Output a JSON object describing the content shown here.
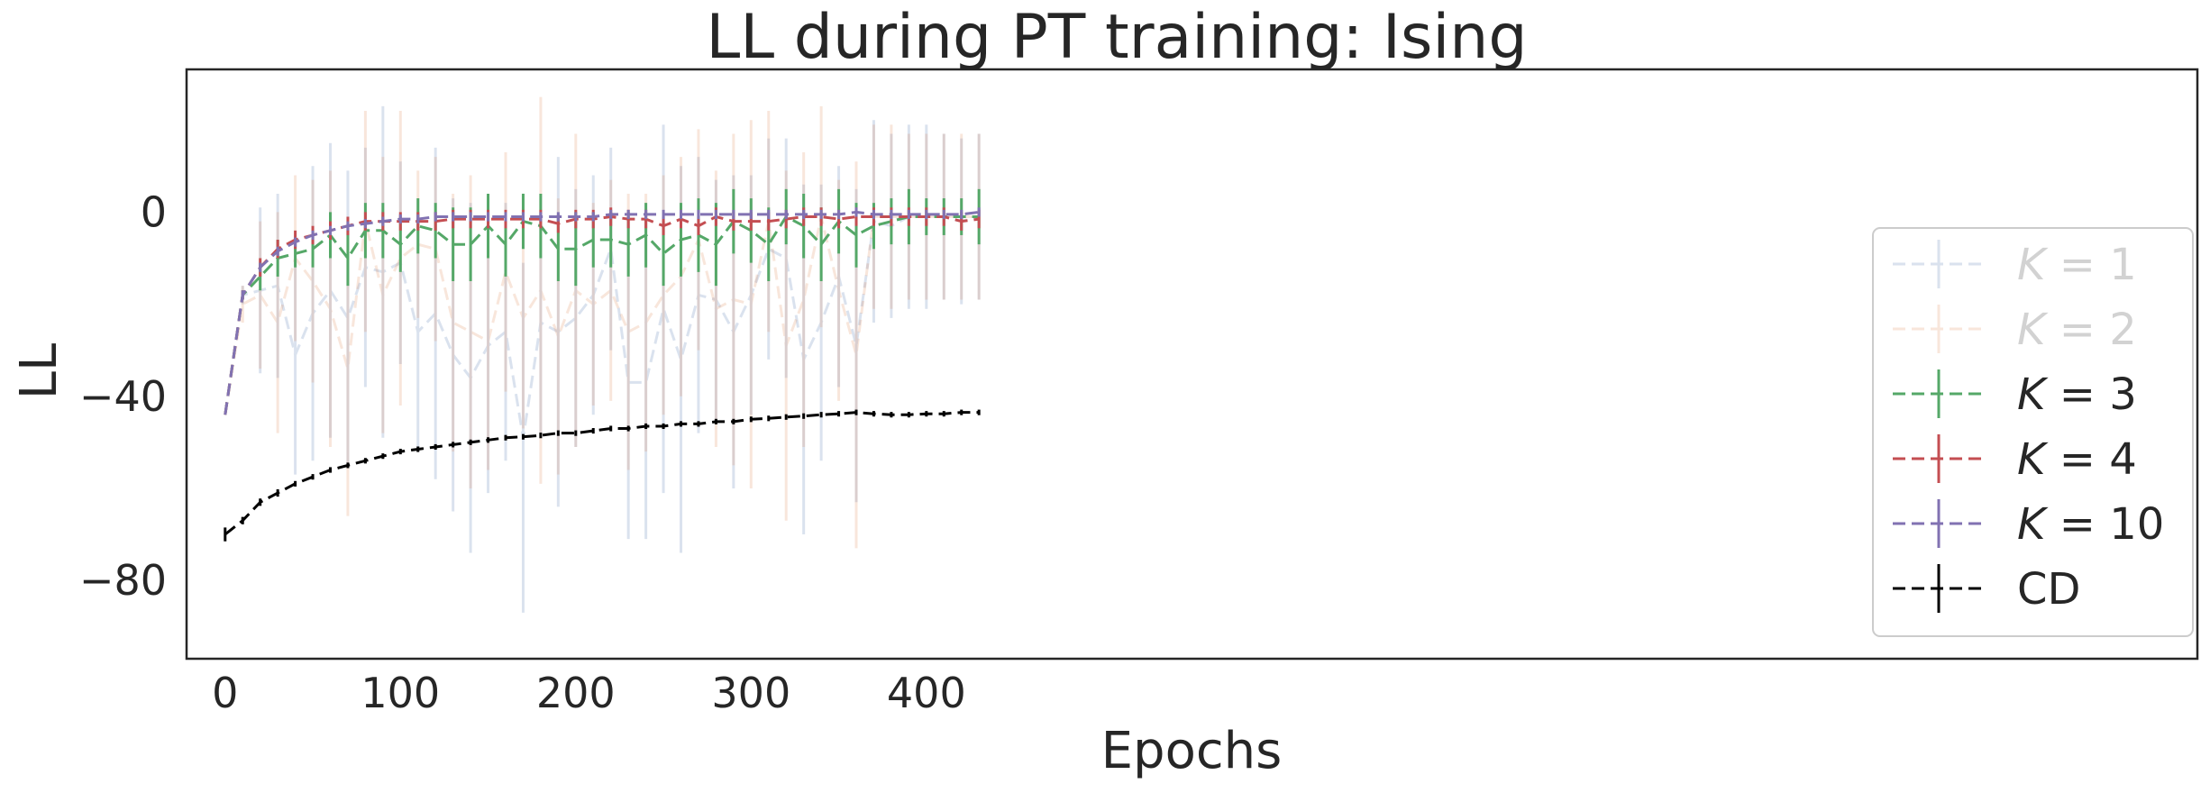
{
  "chart_data": {
    "type": "line",
    "title": "LL during PT training: Ising",
    "xlabel": "Epochs",
    "ylabel": "LL",
    "xlim": [
      -22,
      1125
    ],
    "ylim": [
      -97,
      31
    ],
    "xticks": [
      0,
      100,
      200,
      300,
      400
    ],
    "yticks": [
      0,
      -40,
      -80
    ],
    "ytick_labels": [
      "0",
      "−40",
      "−80"
    ],
    "grid": false,
    "legend_position": "lower-right",
    "x": [
      0,
      10,
      20,
      30,
      40,
      50,
      60,
      70,
      80,
      90,
      100,
      110,
      120,
      130,
      140,
      150,
      160,
      170,
      180,
      190,
      200,
      210,
      220,
      230,
      240,
      250,
      260,
      270,
      280,
      290,
      300,
      310,
      320,
      330,
      340,
      350,
      360,
      370,
      380,
      390,
      400,
      410,
      420,
      430
    ],
    "series": [
      {
        "name": "K = 1",
        "legend_math": "K",
        "legend_rest": " = 1",
        "color": "#4c72b0",
        "opacity": 0.2,
        "values": [
          -44,
          -18,
          -17,
          -16,
          -31,
          -22,
          -17,
          -23,
          -12,
          -13,
          -11,
          -26,
          -22,
          -31,
          -36,
          -29,
          -26,
          -49,
          -24,
          -26,
          -23,
          -18,
          -8,
          -37,
          -37,
          -21,
          -32,
          -18,
          -19,
          -26,
          -18,
          -8,
          -10,
          -32,
          -24,
          -14,
          -29,
          -2,
          -3,
          -1,
          -1,
          -1,
          -2,
          -1
        ],
        "errors": [
          0,
          2,
          18,
          20,
          26,
          32,
          32,
          32,
          26,
          36,
          22,
          26,
          36,
          34,
          38,
          32,
          28,
          38,
          24,
          38,
          28,
          26,
          22,
          34,
          34,
          40,
          42,
          30,
          26,
          34,
          26,
          24,
          26,
          38,
          30,
          24,
          34,
          22,
          20,
          20,
          20,
          18,
          18,
          18
        ]
      },
      {
        "name": "K = 2",
        "legend_math": "K",
        "legend_rest": " = 2",
        "color": "#dd8452",
        "opacity": 0.2,
        "values": [
          -44,
          -20,
          -18,
          -24,
          -10,
          -15,
          -21,
          -34,
          -2,
          -18,
          -10,
          -7,
          -8,
          -24,
          -26,
          -28,
          -13,
          -23,
          -17,
          -27,
          -17,
          -20,
          -17,
          -26,
          -24,
          -18,
          -14,
          -6,
          -21,
          -19,
          -20,
          -2,
          -29,
          -19,
          -1,
          -17,
          -31,
          -1,
          -1,
          -1,
          -1,
          -1,
          -1,
          -1
        ],
        "errors": [
          0,
          4,
          16,
          24,
          18,
          22,
          30,
          32,
          24,
          30,
          32,
          16,
          20,
          28,
          34,
          28,
          26,
          24,
          42,
          30,
          34,
          22,
          24,
          30,
          28,
          26,
          26,
          24,
          30,
          36,
          40,
          24,
          38,
          32,
          24,
          24,
          42,
          20,
          20,
          18,
          18,
          18,
          18,
          18
        ]
      },
      {
        "name": "K = 3",
        "legend_math": "K",
        "legend_rest": " = 3",
        "color": "#55a868",
        "opacity": 1,
        "values": [
          -44,
          -18,
          -14,
          -10,
          -9,
          -8,
          -5,
          -10,
          -4,
          -4,
          -7,
          -3,
          -4,
          -7,
          -7,
          -3,
          -7,
          -2,
          -3,
          -8,
          -8,
          -6,
          -6,
          -7,
          -5,
          -9,
          -6,
          -5,
          -7,
          -2,
          -4,
          -7,
          -1,
          -3,
          -7,
          -2,
          -5,
          -3,
          -2,
          -1,
          -1,
          -1,
          -1,
          -1
        ],
        "errors": [
          0,
          1,
          3,
          4,
          3,
          4,
          5,
          6,
          6,
          6,
          6,
          6,
          6,
          8,
          8,
          7,
          7,
          6,
          7,
          7,
          8,
          6,
          6,
          7,
          7,
          7,
          8,
          8,
          9,
          7,
          7,
          8,
          6,
          7,
          8,
          7,
          7,
          5,
          5,
          6,
          4,
          4,
          4,
          6
        ]
      },
      {
        "name": "K = 4",
        "legend_math": "K",
        "legend_rest": " = 4",
        "color": "#c44e52",
        "opacity": 1,
        "values": [
          -44,
          -18,
          -12,
          -8,
          -6,
          -5,
          -4,
          -3,
          -2,
          -2,
          -2,
          -2,
          -2,
          -1.5,
          -1.5,
          -1.5,
          -1.5,
          -1.5,
          -1.5,
          -2.5,
          -1.5,
          -1.5,
          -1,
          -1.5,
          -1.5,
          -3,
          -1.5,
          -3,
          -1,
          -2,
          -2,
          -2,
          -1.5,
          -1,
          -1,
          -1.5,
          -1,
          -1,
          -1,
          -1,
          -1,
          -1,
          -2,
          -1.5
        ],
        "errors": [
          0,
          1,
          2,
          2,
          2,
          2,
          2,
          2,
          2,
          2,
          2,
          2,
          2,
          2,
          2,
          2,
          2,
          2,
          2,
          2,
          2,
          2,
          2,
          2,
          2,
          2,
          2,
          2,
          2,
          2,
          2,
          2,
          2,
          2,
          2,
          2,
          2,
          2,
          2,
          2,
          2,
          2,
          2,
          2
        ]
      },
      {
        "name": "K = 10",
        "legend_math": "K",
        "legend_rest": " = 10",
        "color": "#8172b2",
        "opacity": 1,
        "values": [
          -44,
          -18,
          -12,
          -8.5,
          -6.5,
          -5,
          -4,
          -3,
          -2.5,
          -2,
          -1.5,
          -1.5,
          -1,
          -1,
          -1,
          -1,
          -1,
          -1,
          -1,
          -1,
          -1,
          -1,
          -0.5,
          -0.5,
          -0.5,
          -0.5,
          -0.5,
          -0.5,
          -0.5,
          -0.5,
          -0.5,
          -0.5,
          -0.5,
          -0.5,
          -0.5,
          -0.5,
          0,
          -0.5,
          -0.5,
          -0.5,
          -0.5,
          -0.5,
          -0.5,
          0
        ],
        "errors": [
          0,
          1,
          1,
          1,
          1,
          1,
          1,
          1,
          1,
          1,
          1,
          1,
          1,
          1,
          1,
          1,
          1,
          1,
          1,
          1,
          1,
          1,
          1,
          1,
          1,
          1,
          1,
          1,
          1,
          1,
          1,
          1,
          1,
          1,
          1,
          1,
          1,
          1,
          1,
          1,
          1,
          1,
          1,
          1
        ]
      },
      {
        "name": "CD",
        "legend_math": "",
        "legend_rest": "CD",
        "color": "#000000",
        "opacity": 1,
        "values": [
          -70,
          -67,
          -63,
          -61,
          -59,
          -57.5,
          -56,
          -55,
          -54,
          -53,
          -52,
          -51.5,
          -51,
          -50.5,
          -50,
          -49.5,
          -49,
          -48.8,
          -48.5,
          -48,
          -48,
          -47.5,
          -47,
          -47,
          -46.5,
          -46.5,
          -46,
          -46,
          -45.5,
          -45.5,
          -45,
          -44.8,
          -44.5,
          -44.3,
          -44,
          -43.8,
          -43.5,
          -43.8,
          -44,
          -44,
          -43.8,
          -43.8,
          -43.5,
          -43.5
        ],
        "errors": [
          1.5,
          0.8,
          0.8,
          0.8,
          0.6,
          0.6,
          0.6,
          0.6,
          0.6,
          0.6,
          0.6,
          0.6,
          0.6,
          0.6,
          0.6,
          0.6,
          0.6,
          0.6,
          0.6,
          0.6,
          0.6,
          0.6,
          0.6,
          0.6,
          0.6,
          0.6,
          0.6,
          0.6,
          0.6,
          0.6,
          0.6,
          0.6,
          0.6,
          0.6,
          0.6,
          0.6,
          0.6,
          0.6,
          0.6,
          0.6,
          0.6,
          0.6,
          0.6,
          0.6
        ]
      }
    ]
  }
}
